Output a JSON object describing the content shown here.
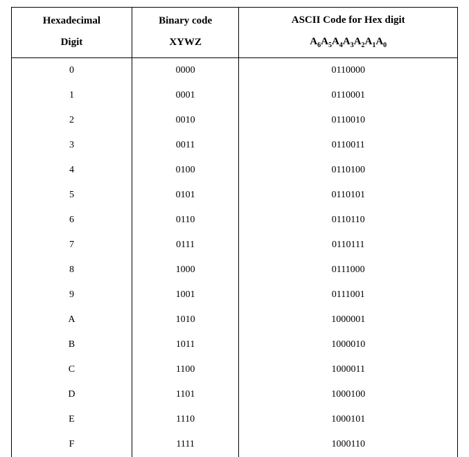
{
  "table": {
    "type": "table",
    "background_color": "#ffffff",
    "text_color": "#000000",
    "border_color": "#000000",
    "font_family": "Times New Roman",
    "header_fontsize_pt": 11,
    "body_fontsize_pt": 10,
    "columns": [
      {
        "line1": "Hexadecimal",
        "line2": "Digit",
        "width_pct": 27,
        "align": "center"
      },
      {
        "line1": "Binary code",
        "line2": "XYWZ",
        "width_pct": 24,
        "align": "center"
      },
      {
        "line1": "ASCII Code for Hex digit",
        "line2_bits": [
          "A",
          "6",
          "A",
          "5",
          "A",
          "4",
          "A",
          "3",
          "A",
          "2",
          "A",
          "1",
          "A",
          "0"
        ],
        "width_pct": 49,
        "align": "center"
      }
    ],
    "rows": [
      {
        "hex": "0",
        "bin": "0000",
        "ascii": "0110000"
      },
      {
        "hex": "1",
        "bin": "0001",
        "ascii": "0110001"
      },
      {
        "hex": "2",
        "bin": "0010",
        "ascii": "0110010"
      },
      {
        "hex": "3",
        "bin": "0011",
        "ascii": "0110011"
      },
      {
        "hex": "4",
        "bin": "0100",
        "ascii": "0110100"
      },
      {
        "hex": "5",
        "bin": "0101",
        "ascii": "0110101"
      },
      {
        "hex": "6",
        "bin": "0110",
        "ascii": "0110110"
      },
      {
        "hex": "7",
        "bin": "0111",
        "ascii": "0110111"
      },
      {
        "hex": "8",
        "bin": "1000",
        "ascii": "0111000"
      },
      {
        "hex": "9",
        "bin": "1001",
        "ascii": "0111001"
      },
      {
        "hex": "A",
        "bin": "1010",
        "ascii": "1000001"
      },
      {
        "hex": "B",
        "bin": "1011",
        "ascii": "1000010"
      },
      {
        "hex": "C",
        "bin": "1100",
        "ascii": "1000011"
      },
      {
        "hex": "D",
        "bin": "1101",
        "ascii": "1000100"
      },
      {
        "hex": "E",
        "bin": "1110",
        "ascii": "1000101"
      },
      {
        "hex": "F",
        "bin": "1111",
        "ascii": "1000110"
      }
    ]
  }
}
